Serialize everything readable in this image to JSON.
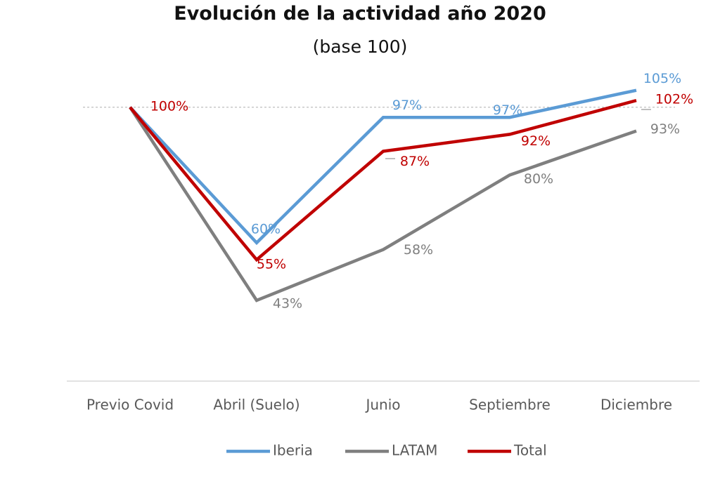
{
  "chart_data": {
    "type": "line",
    "title": "Evolución de la actividad año 2020",
    "subtitle": "(base 100)",
    "categories": [
      "Previo Covid",
      "Abril (Suelo)",
      "Junio",
      "Septiembre",
      "Diciembre"
    ],
    "series": [
      {
        "name": "Iberia",
        "color": "#5B9BD5",
        "values": [
          100,
          60,
          97,
          97,
          105
        ],
        "labels": [
          "",
          "60%",
          "97%",
          "97%",
          "105%"
        ]
      },
      {
        "name": "LATAM",
        "color": "#7F7F7F",
        "values": [
          100,
          43,
          58,
          80,
          93
        ],
        "labels": [
          "",
          "43%",
          "58%",
          "80%",
          "93%"
        ]
      },
      {
        "name": "Total",
        "color": "#C00000",
        "values": [
          100,
          55,
          87,
          92,
          102
        ],
        "labels": [
          "100%",
          "55%",
          "87%",
          "92%",
          "102%"
        ]
      }
    ],
    "reference_line": 100,
    "ylim": [
      20,
      110
    ],
    "y_axis_visible": false,
    "gridlines": false,
    "legend_position": "bottom"
  }
}
